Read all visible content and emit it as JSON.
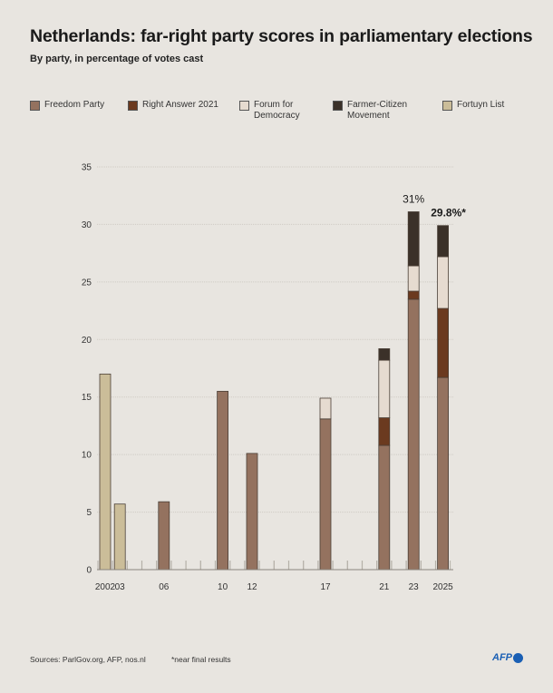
{
  "chart_data": {
    "type": "bar",
    "stacked": true,
    "title": "Netherlands: far-right party scores in parliamentary elections",
    "subtitle": "By party, in percentage of votes cast",
    "ylim": [
      0,
      35
    ],
    "yticks": [
      0,
      5,
      10,
      15,
      20,
      25,
      30,
      35
    ],
    "grid": true,
    "legend_position": "top",
    "categories": [
      2002,
      2003,
      2006,
      2010,
      2012,
      2017,
      2021,
      2023,
      2025
    ],
    "tick_labels": [
      "2002",
      "03",
      "06",
      "10",
      "12",
      "17",
      "21",
      "23",
      "2025"
    ],
    "series": [
      {
        "name": "Freedom Party",
        "color": "#94725f",
        "values": [
          0,
          0,
          5.9,
          15.5,
          10.1,
          13.1,
          10.8,
          23.5,
          16.7
        ]
      },
      {
        "name": "Right Answer 2021",
        "color": "#6b3a1f",
        "values": [
          0,
          0,
          0,
          0,
          0,
          0,
          2.4,
          0.7,
          6.0
        ]
      },
      {
        "name": "Forum for Democracy",
        "color": "#e6dbd0",
        "values": [
          0,
          0,
          0,
          0,
          0,
          1.8,
          5.0,
          2.2,
          4.5
        ]
      },
      {
        "name": "Farmer-Citizen Movement",
        "color": "#3b3129",
        "values": [
          0,
          0,
          0,
          0,
          0,
          0,
          1.0,
          4.7,
          2.7
        ]
      },
      {
        "name": "Fortuyn List",
        "color": "#cbbd99",
        "values": [
          17.0,
          5.7,
          0,
          0,
          0,
          0,
          0,
          0,
          0
        ]
      }
    ],
    "legend_labels": [
      [
        "Freedom Party"
      ],
      [
        "Right Answer 2021"
      ],
      [
        "Forum for",
        "Democracy"
      ],
      [
        "Farmer-Citizen",
        "Movement"
      ],
      [
        "Fortuyn List"
      ]
    ],
    "annotations": [
      {
        "category": 2023,
        "text": "31%"
      },
      {
        "category": 2025,
        "text": "29.8%*"
      }
    ]
  },
  "footer": {
    "sources": "Sources: ParlGov.org, AFP, nos.nl",
    "note": "*near final results",
    "logo": "AFP"
  }
}
